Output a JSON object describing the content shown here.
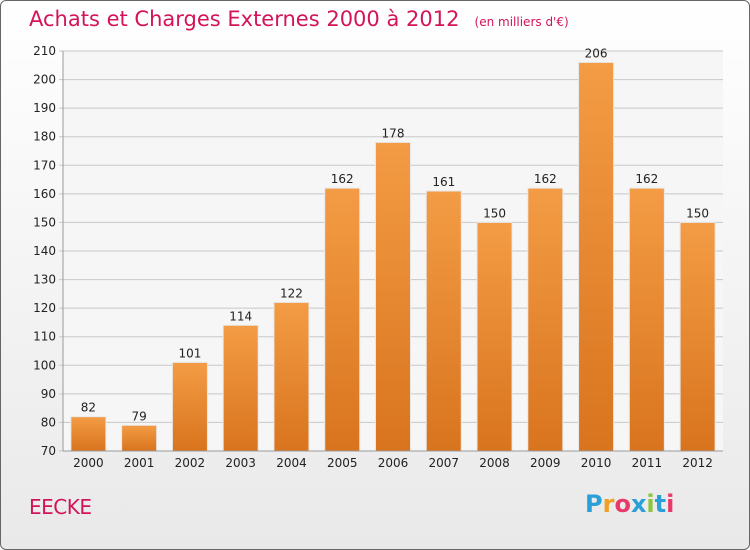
{
  "chart_data": {
    "type": "bar",
    "title": "Achats et Charges Externes 2000 à 2012",
    "subtitle": "(en milliers d'€)",
    "categories": [
      "2000",
      "2001",
      "2002",
      "2003",
      "2004",
      "2005",
      "2006",
      "2007",
      "2008",
      "2009",
      "2010",
      "2011",
      "2012"
    ],
    "values": [
      82,
      79,
      101,
      114,
      122,
      162,
      178,
      161,
      150,
      162,
      206,
      162,
      150
    ],
    "ylim": [
      70,
      210
    ],
    "yticks": [
      70,
      80,
      90,
      100,
      110,
      120,
      130,
      140,
      150,
      160,
      170,
      180,
      190,
      200,
      210
    ],
    "grid": true,
    "bar_color": "#f39c45",
    "bar_color_dark": "#d9741e"
  },
  "footer": {
    "town": "EECKE",
    "logo_letters": [
      "P",
      "r",
      "o",
      "x",
      "i",
      "t",
      "i"
    ],
    "logo_colors": [
      "#2a9fd8",
      "#f0a020",
      "#e83a6a",
      "#2a9fd8",
      "#8cc63f",
      "#2a9fd8",
      "#e83a6a"
    ]
  }
}
